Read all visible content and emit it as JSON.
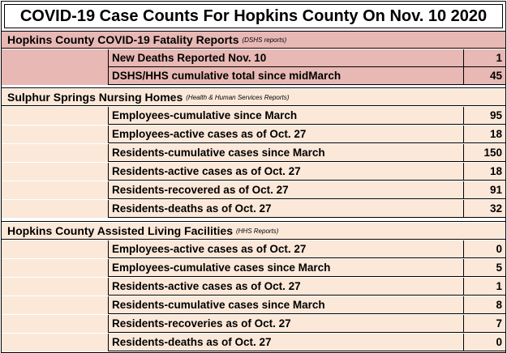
{
  "title": "COVID-19 Case Counts For Hopkins County On Nov. 10 2020",
  "sections": [
    {
      "heading": "Hopkins County COVID-19 Fatality Reports",
      "source": "(DSHS reports)",
      "color": "#e7b8b4",
      "rows": [
        {
          "label": "New Deaths Reported Nov. 10",
          "value": "1"
        },
        {
          "label": "DSHS/HHS cumulative total since midMarch",
          "value": "45"
        }
      ]
    },
    {
      "heading": "Sulphur Springs Nursing Homes",
      "source": "(Health & Human Services Reports)",
      "color": "#fbe8d9",
      "rows": [
        {
          "label": "Employees-cumulative since March",
          "value": "95"
        },
        {
          "label": "Employees-active cases as of Oct. 27",
          "value": "18"
        },
        {
          "label": "Residents-cumulative cases since March",
          "value": "150"
        },
        {
          "label": "Residents-active cases as of Oct. 27",
          "value": "18"
        },
        {
          "label": "Residents-recovered as of Oct. 27",
          "value": "91"
        },
        {
          "label": "Residents-deaths as of Oct. 27",
          "value": "32"
        }
      ]
    },
    {
      "heading": "Hopkins County Assisted Living Facilities",
      "source": "(HHS Reports)",
      "color": "#fbe8d9",
      "rows": [
        {
          "label": "Employees-active cases as of Oct. 27",
          "value": "0"
        },
        {
          "label": "Employees-cumulative cases since March",
          "value": "5"
        },
        {
          "label": "Residents-active cases as of Oct. 27",
          "value": "1"
        },
        {
          "label": "Residents-cumulative cases since March",
          "value": "8"
        },
        {
          "label": "Residents-recoveries as of Oct. 27",
          "value": "7"
        },
        {
          "label": "Residents-deaths as of Oct. 27",
          "value": "0"
        }
      ]
    }
  ]
}
